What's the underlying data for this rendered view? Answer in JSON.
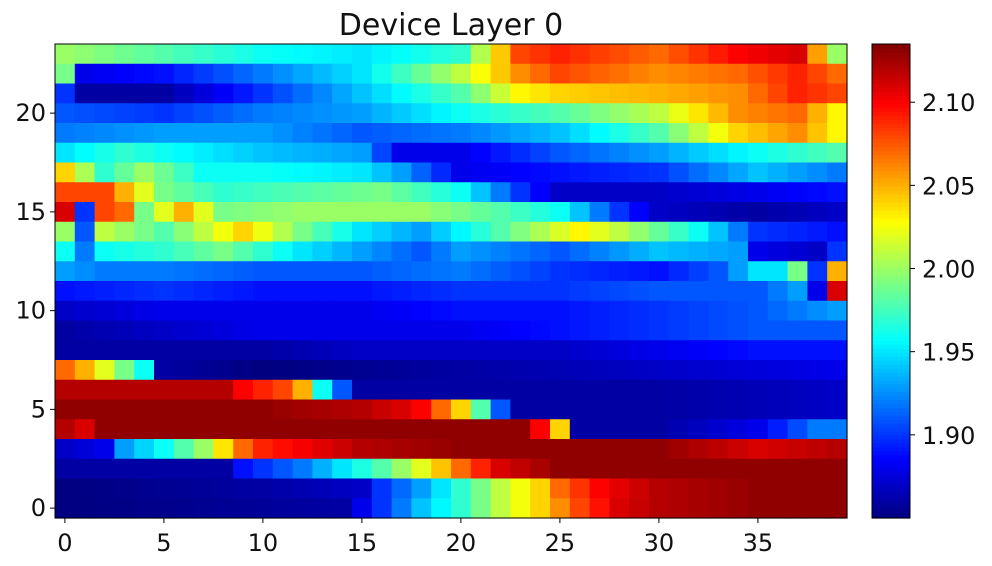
{
  "chart_data": {
    "type": "heatmap",
    "title": "Device Layer 0",
    "xlabel": "",
    "ylabel": "",
    "colormap": "jet",
    "n_cols": 40,
    "n_rows": 24,
    "xlim": [
      -0.5,
      39.5
    ],
    "ylim": [
      -0.5,
      23.5
    ],
    "x_ticks": [
      0,
      5,
      10,
      15,
      20,
      25,
      30,
      35
    ],
    "x_tick_labels": [
      "0",
      "5",
      "10",
      "15",
      "20",
      "25",
      "30",
      "35"
    ],
    "y_ticks": [
      0,
      5,
      10,
      15,
      20
    ],
    "y_tick_labels": [
      "0",
      "5",
      "10",
      "15",
      "20"
    ],
    "colorbar": {
      "vmin": 1.85,
      "vmax": 2.135,
      "ticks": [
        1.9,
        1.95,
        2.0,
        2.05,
        2.1
      ],
      "tick_labels": [
        "1.90",
        "1.95",
        "2.00",
        "2.05",
        "2.10"
      ]
    },
    "grid": false,
    "legend": "none",
    "anchor_points_note_free": true,
    "rows": [
      {
        "y": 23,
        "cols": [
          0,
          5,
          10,
          15,
          20,
          23,
          25,
          30,
          34,
          37,
          39
        ],
        "vals": [
          2.0,
          1.98,
          1.96,
          1.95,
          1.97,
          2.08,
          2.09,
          2.07,
          2.1,
          2.11,
          2.0
        ]
      },
      {
        "y": 22,
        "cols": [
          0,
          1,
          5,
          10,
          15,
          20,
          23,
          25,
          30,
          34,
          37,
          39
        ],
        "vals": [
          1.99,
          1.88,
          1.89,
          1.92,
          1.95,
          2.01,
          2.06,
          2.08,
          2.06,
          2.07,
          2.09,
          2.07
        ]
      },
      {
        "y": 21,
        "cols": [
          0,
          1,
          5,
          10,
          15,
          20,
          23,
          25,
          30,
          34,
          37,
          39
        ],
        "vals": [
          1.9,
          1.86,
          1.86,
          1.9,
          1.94,
          1.98,
          2.03,
          2.04,
          2.05,
          2.06,
          2.09,
          2.08
        ]
      },
      {
        "y": 20,
        "cols": [
          0,
          5,
          10,
          15,
          20,
          25,
          30,
          34,
          37,
          39
        ],
        "vals": [
          1.91,
          1.9,
          1.92,
          1.93,
          1.96,
          1.98,
          2.01,
          2.06,
          2.07,
          2.03
        ]
      },
      {
        "y": 19,
        "cols": [
          0,
          5,
          10,
          15,
          20,
          25,
          30,
          34,
          37,
          39
        ],
        "vals": [
          1.92,
          1.93,
          1.93,
          1.91,
          1.92,
          1.94,
          1.98,
          2.04,
          2.06,
          2.03
        ]
      },
      {
        "y": 18,
        "cols": [
          0,
          3,
          5,
          10,
          15,
          17,
          20,
          25,
          30,
          35,
          39
        ],
        "vals": [
          1.95,
          1.97,
          1.96,
          1.94,
          1.93,
          1.88,
          1.88,
          1.91,
          1.93,
          1.96,
          1.98
        ]
      },
      {
        "y": 17,
        "cols": [
          0,
          2,
          4,
          7,
          10,
          15,
          17,
          20,
          25,
          30,
          35,
          39
        ],
        "vals": [
          2.04,
          1.97,
          2.0,
          1.96,
          1.96,
          1.95,
          1.93,
          1.88,
          1.89,
          1.9,
          1.94,
          1.92
        ]
      },
      {
        "y": 16,
        "cols": [
          0,
          2,
          3,
          5,
          8,
          12,
          16,
          20,
          23,
          25,
          30,
          35,
          39
        ],
        "vals": [
          2.08,
          2.08,
          2.05,
          1.99,
          1.97,
          1.98,
          1.99,
          1.96,
          1.9,
          1.87,
          1.87,
          1.88,
          1.89
        ]
      },
      {
        "y": 15,
        "cols": [
          0,
          1,
          2,
          3,
          4,
          6,
          8,
          12,
          18,
          22,
          25,
          28,
          30,
          35,
          39
        ],
        "vals": [
          2.11,
          1.9,
          2.08,
          2.07,
          1.99,
          2.05,
          1.99,
          2.0,
          2.0,
          1.98,
          1.96,
          1.9,
          1.87,
          1.86,
          1.87
        ]
      },
      {
        "y": 14,
        "cols": [
          0,
          1,
          2,
          5,
          9,
          12,
          15,
          18,
          22,
          26,
          28,
          32,
          35,
          39
        ],
        "vals": [
          2.0,
          1.91,
          2.01,
          1.98,
          2.04,
          1.99,
          1.95,
          1.93,
          1.98,
          2.03,
          2.01,
          1.96,
          1.9,
          1.89
        ]
      },
      {
        "y": 13,
        "cols": [
          0,
          1,
          2,
          5,
          8,
          12,
          15,
          18,
          20,
          25,
          30,
          34,
          35,
          38,
          39
        ],
        "vals": [
          1.96,
          1.92,
          1.96,
          1.97,
          1.99,
          1.95,
          1.93,
          1.91,
          1.93,
          1.91,
          1.94,
          1.93,
          1.88,
          1.87,
          1.9
        ]
      },
      {
        "y": 12,
        "cols": [
          0,
          2,
          5,
          10,
          15,
          20,
          25,
          30,
          33,
          35,
          36,
          37,
          38,
          39
        ],
        "vals": [
          1.93,
          1.92,
          1.92,
          1.91,
          1.91,
          1.92,
          1.9,
          1.89,
          1.91,
          1.95,
          1.95,
          1.99,
          1.9,
          2.05
        ]
      },
      {
        "y": 11,
        "cols": [
          0,
          5,
          10,
          15,
          20,
          25,
          30,
          35,
          37,
          38,
          39
        ],
        "vals": [
          1.89,
          1.9,
          1.89,
          1.89,
          1.9,
          1.9,
          1.91,
          1.91,
          1.93,
          1.88,
          2.11
        ]
      },
      {
        "y": 10,
        "cols": [
          0,
          5,
          10,
          15,
          20,
          25,
          30,
          35,
          39
        ],
        "vals": [
          1.87,
          1.88,
          1.88,
          1.88,
          1.89,
          1.89,
          1.9,
          1.91,
          1.93
        ]
      },
      {
        "y": 9,
        "cols": [
          0,
          5,
          10,
          15,
          20,
          25,
          30,
          35,
          39
        ],
        "vals": [
          1.86,
          1.87,
          1.88,
          1.88,
          1.88,
          1.89,
          1.9,
          1.91,
          1.91
        ]
      },
      {
        "y": 8,
        "cols": [
          0,
          5,
          10,
          15,
          20,
          25,
          30,
          35,
          39
        ],
        "vals": [
          1.86,
          1.86,
          1.86,
          1.87,
          1.87,
          1.87,
          1.88,
          1.89,
          1.89
        ]
      },
      {
        "y": 7,
        "cols": [
          0,
          1,
          2,
          3,
          4,
          5,
          10,
          20,
          30,
          39
        ],
        "vals": [
          2.07,
          2.05,
          2.02,
          1.99,
          1.96,
          1.86,
          1.85,
          1.86,
          1.87,
          1.88
        ]
      },
      {
        "y": 6,
        "cols": [
          0,
          5,
          8,
          9,
          10,
          11,
          12,
          13,
          15,
          20,
          30,
          39
        ],
        "vals": [
          2.12,
          2.12,
          2.12,
          2.1,
          2.09,
          2.08,
          2.05,
          1.96,
          1.86,
          1.86,
          1.86,
          1.87
        ]
      },
      {
        "y": 5,
        "cols": [
          0,
          5,
          10,
          15,
          17,
          18,
          19,
          20,
          21,
          22,
          23,
          30,
          39
        ],
        "vals": [
          2.13,
          2.13,
          2.13,
          2.12,
          2.11,
          2.1,
          2.07,
          2.04,
          1.98,
          1.91,
          1.86,
          1.86,
          1.87
        ]
      },
      {
        "y": 4,
        "cols": [
          0,
          1,
          2,
          5,
          10,
          15,
          20,
          23,
          24,
          25,
          26,
          30,
          35,
          38,
          39
        ],
        "vals": [
          2.12,
          2.11,
          2.13,
          2.13,
          2.13,
          2.13,
          2.13,
          2.13,
          2.1,
          2.04,
          1.86,
          1.86,
          1.88,
          1.92,
          1.92
        ]
      },
      {
        "y": 3,
        "cols": [
          0,
          2,
          3,
          5,
          7,
          9,
          10,
          15,
          20,
          25,
          30,
          35,
          39
        ],
        "vals": [
          1.87,
          1.88,
          1.93,
          1.96,
          2.0,
          2.07,
          2.09,
          2.12,
          2.13,
          2.13,
          2.13,
          2.11,
          2.12
        ]
      },
      {
        "y": 2,
        "cols": [
          0,
          8,
          9,
          12,
          14,
          16,
          18,
          20,
          22,
          25,
          30,
          35,
          39
        ],
        "vals": [
          1.86,
          1.86,
          1.89,
          1.92,
          1.95,
          1.98,
          2.02,
          2.07,
          2.11,
          2.13,
          2.13,
          2.13,
          2.13
        ]
      },
      {
        "y": 1,
        "cols": [
          0,
          10,
          15,
          16,
          18,
          20,
          22,
          24,
          25,
          27,
          30,
          35,
          39
        ],
        "vals": [
          1.85,
          1.86,
          1.87,
          1.9,
          1.93,
          1.97,
          2.01,
          2.04,
          2.07,
          2.1,
          2.12,
          2.13,
          2.13
        ]
      },
      {
        "y": 0,
        "cols": [
          0,
          14,
          15,
          16,
          18,
          20,
          22,
          24,
          26,
          28,
          30,
          35,
          39
        ],
        "vals": [
          1.85,
          1.86,
          1.88,
          1.9,
          1.94,
          1.97,
          2.01,
          2.04,
          2.08,
          2.11,
          2.12,
          2.13,
          2.13
        ]
      }
    ]
  }
}
